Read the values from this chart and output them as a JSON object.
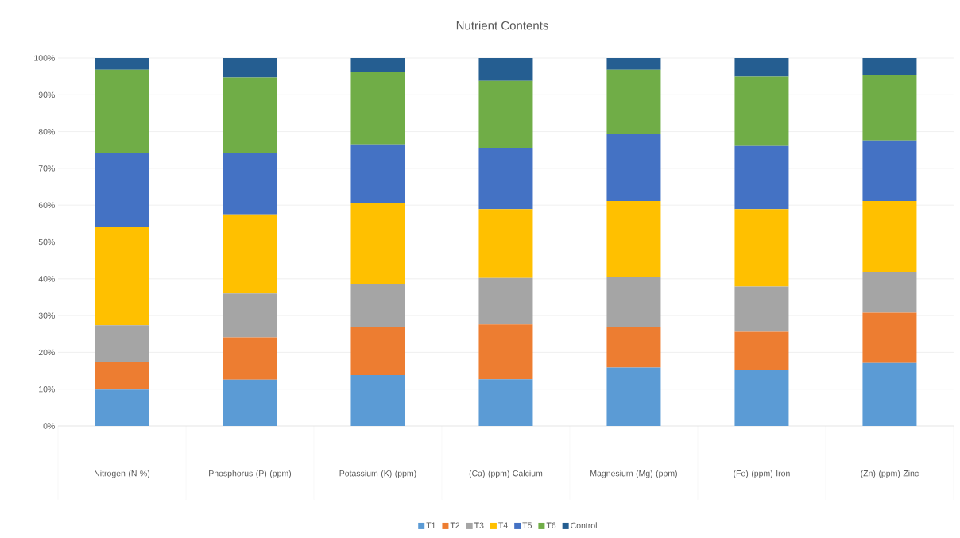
{
  "chart_data": {
    "type": "bar",
    "stacked": true,
    "title": "Nutrient Contents",
    "categories": [
      "Nitrogen (N %)",
      "Phosphorus (P) (ppm)",
      "Potassium (K) (ppm)",
      "(Ca) (ppm) Calcium",
      "Magnesium (Mg) (ppm)",
      "(Fe) (ppm) Iron",
      "(Zn) (ppm) Zinc"
    ],
    "series": [
      {
        "name": "T1",
        "color": "#5b9bd5",
        "values": [
          9.9,
          12.6,
          13.8,
          12.7,
          15.9,
          15.3,
          17.1
        ]
      },
      {
        "name": "T2",
        "color": "#ed7d31",
        "values": [
          7.5,
          11.5,
          13.0,
          14.9,
          11.1,
          10.3,
          13.7
        ]
      },
      {
        "name": "T3",
        "color": "#a5a5a5",
        "values": [
          10.0,
          11.9,
          11.7,
          12.6,
          13.4,
          12.3,
          11.1
        ]
      },
      {
        "name": "T4",
        "color": "#ffc000",
        "values": [
          26.6,
          21.5,
          22.1,
          18.7,
          20.7,
          21.0,
          19.2
        ]
      },
      {
        "name": "T5",
        "color": "#4472c4",
        "values": [
          20.2,
          16.7,
          15.9,
          16.7,
          18.2,
          17.2,
          16.5
        ]
      },
      {
        "name": "T6",
        "color": "#70ad47",
        "values": [
          22.6,
          20.5,
          19.6,
          18.2,
          17.5,
          18.8,
          17.7
        ]
      },
      {
        "name": "Control",
        "color": "#255e91",
        "values": [
          3.2,
          5.3,
          3.9,
          6.2,
          3.2,
          5.1,
          4.7
        ]
      }
    ],
    "ylim": [
      0,
      100
    ],
    "yticks": [
      {
        "value": 0,
        "label": "0%"
      },
      {
        "value": 10,
        "label": "10%"
      },
      {
        "value": 20,
        "label": "20%"
      },
      {
        "value": 30,
        "label": "30%"
      },
      {
        "value": 40,
        "label": "40%"
      },
      {
        "value": 50,
        "label": "50%"
      },
      {
        "value": 60,
        "label": "60%"
      },
      {
        "value": 70,
        "label": "70%"
      },
      {
        "value": 80,
        "label": "80%"
      },
      {
        "value": 90,
        "label": "90%"
      },
      {
        "value": 100,
        "label": "100%"
      }
    ],
    "grid": "y",
    "legend": "bottom"
  }
}
